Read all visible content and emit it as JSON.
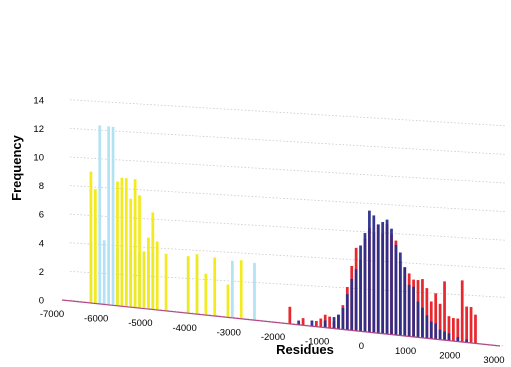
{
  "chart_data": {
    "type": "bar",
    "xlabel": "Residues",
    "ylabel": "Frequency",
    "xlim": [
      -7000,
      3000
    ],
    "ylim": [
      0,
      14
    ],
    "x_ticks": [
      "-7000",
      "-6000",
      "-5000",
      "-4000",
      "-3000",
      "-2000",
      "-1000",
      "0",
      "1000",
      "2000",
      "3000"
    ],
    "y_ticks": [
      "0",
      "2",
      "4",
      "6",
      "8",
      "10",
      "12",
      "14"
    ],
    "grid": true,
    "legend": "none",
    "bin_width": 100,
    "series": [
      {
        "color": "#aee0f2",
        "x": [
          -6300,
          -6100,
          -6000,
          -5900,
          -5800,
          -5700,
          -5600,
          -5500,
          -5400,
          -5300,
          -5200,
          -5100,
          -5000,
          -4900,
          -4100,
          -3900,
          -3100,
          -2600
        ],
        "values": [
          4.3,
          12.5,
          4.5,
          12.5,
          12.5,
          4.0,
          4.0,
          4.0,
          4.0,
          4.0,
          3.9,
          4.0,
          4.0,
          4.0,
          3.9,
          4.0,
          4.0,
          4.0
        ]
      },
      {
        "color": "#f2ea14",
        "x": [
          -6300,
          -6200,
          -5700,
          -5600,
          -5500,
          -5400,
          -5300,
          -5200,
          -5100,
          -5000,
          -4900,
          -4800,
          -4600,
          -4100,
          -3900,
          -3700,
          -3500,
          -3200,
          -2900
        ],
        "values": [
          9.2,
          8.0,
          8.7,
          9.0,
          9.0,
          7.6,
          9.0,
          7.9,
          4.0,
          5.0,
          6.8,
          4.8,
          4.0,
          4.0,
          4.2,
          2.9,
          4.1,
          2.3,
          4.1
        ]
      },
      {
        "color": "#e61e24",
        "x": [
          -1800,
          -1500,
          -1200,
          -1100,
          -1000,
          -900,
          -800,
          -700,
          -600,
          -500,
          -400,
          -300,
          -200,
          -100,
          0,
          100,
          200,
          300,
          400,
          500,
          600,
          700,
          800,
          900,
          1000,
          1100,
          1200,
          1300,
          1400,
          1500,
          1600,
          1700,
          1800,
          1900,
          2000,
          2100,
          2200,
          2300,
          2400
        ],
        "values": [
          1.2,
          0.5,
          0.4,
          0.6,
          0.9,
          0.8,
          0.5,
          1.0,
          1.7,
          3.0,
          4.5,
          5.8,
          5.0,
          6.5,
          7.3,
          7.0,
          7.6,
          7.0,
          7.7,
          7.0,
          6.6,
          5.2,
          4.8,
          4.4,
          4.0,
          4.0,
          4.1,
          3.5,
          2.6,
          3.2,
          2.5,
          4.1,
          1.7,
          1.6,
          1.6,
          4.3,
          2.5,
          2.5,
          2.0
        ]
      },
      {
        "color": "#2a2d8a",
        "x": [
          -1600,
          -1300,
          -1000,
          -800,
          -700,
          -600,
          -500,
          -400,
          -300,
          -200,
          -100,
          0,
          100,
          200,
          300,
          400,
          500,
          600,
          700,
          800,
          900,
          1000,
          1100,
          1200,
          1300,
          1400,
          1500,
          1600,
          1700,
          1800,
          2000,
          2200
        ],
        "values": [
          0.3,
          0.4,
          0.5,
          0.8,
          1.0,
          1.5,
          2.5,
          3.6,
          4.3,
          6.0,
          6.9,
          8.5,
          8.2,
          7.6,
          7.8,
          8.0,
          7.4,
          6.3,
          5.8,
          4.8,
          3.6,
          3.5,
          2.5,
          2.1,
          1.6,
          1.2,
          1.1,
          0.7,
          0.6,
          0.5,
          0.3,
          0.2
        ]
      }
    ]
  }
}
